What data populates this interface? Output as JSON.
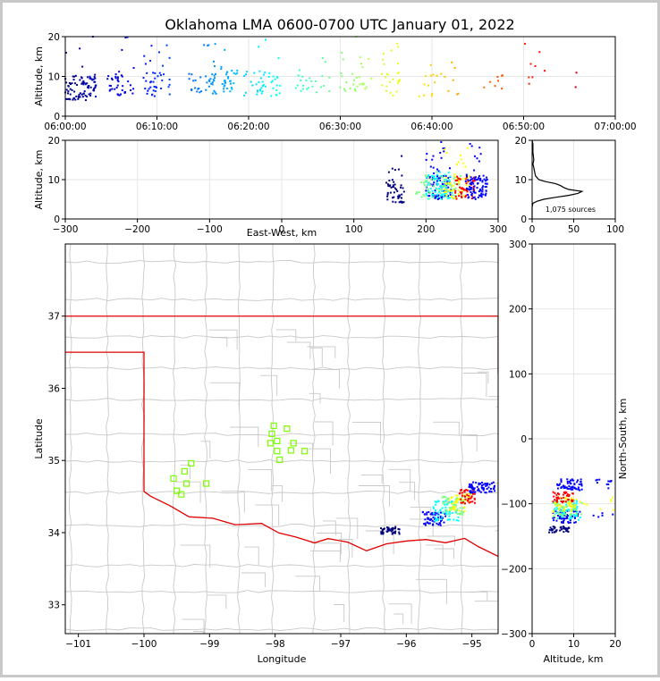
{
  "colors": {
    "outer_border": "#c8c8c8",
    "state_line": "#e00000",
    "county_line": "#c8c8c8",
    "grid": "#e6e6e6",
    "station_marker": "#7cfc00",
    "jet_scale": [
      "#00007f",
      "#0000ff",
      "#007fff",
      "#00ffff",
      "#7fff7f",
      "#ffff00",
      "#ff7f00",
      "#ff0000",
      "#7f0000"
    ]
  },
  "chart_data": [
    {
      "id": "time_height",
      "type": "scatter",
      "title": "Oklahoma LMA 0600-0700 UTC January 01, 2022",
      "xlabel": "",
      "ylabel": "Altitude, km",
      "xlim": [
        "06:00:00",
        "07:00:00"
      ],
      "ylim": [
        0,
        20
      ],
      "xticks": [
        "06:00:00",
        "06:10:00",
        "06:20:00",
        "06:30:00",
        "06:40:00",
        "06:50:00",
        "07:00:00"
      ],
      "yticks": [
        "0",
        "10",
        "20"
      ],
      "grid": true,
      "color_by": "time",
      "bursts": [
        {
          "t0_min": 0.0,
          "t1_min": 3.5,
          "alt_min": 4,
          "alt_max": 22,
          "count": 90
        },
        {
          "t0_min": 4.5,
          "t1_min": 7.5,
          "alt_min": 5,
          "alt_max": 20,
          "count": 40
        },
        {
          "t0_min": 8.5,
          "t1_min": 11.5,
          "alt_min": 5,
          "alt_max": 20,
          "count": 40
        },
        {
          "t0_min": 13.5,
          "t1_min": 16.5,
          "alt_min": 5,
          "alt_max": 19,
          "count": 40
        },
        {
          "t0_min": 17.0,
          "t1_min": 19.0,
          "alt_min": 6,
          "alt_max": 17,
          "count": 30
        },
        {
          "t0_min": 19.5,
          "t1_min": 23.5,
          "alt_min": 5,
          "alt_max": 20,
          "count": 45
        },
        {
          "t0_min": 25.0,
          "t1_min": 29.0,
          "alt_min": 5,
          "alt_max": 20,
          "count": 25
        },
        {
          "t0_min": 30.0,
          "t1_min": 33.5,
          "alt_min": 5,
          "alt_max": 20,
          "count": 30
        },
        {
          "t0_min": 34.5,
          "t1_min": 36.5,
          "alt_min": 5,
          "alt_max": 19,
          "count": 25
        },
        {
          "t0_min": 38.5,
          "t1_min": 43.0,
          "alt_min": 5,
          "alt_max": 14,
          "count": 20
        },
        {
          "t0_min": 45.5,
          "t1_min": 48.0,
          "alt_min": 6,
          "alt_max": 11,
          "count": 8
        },
        {
          "t0_min": 50.0,
          "t1_min": 52.5,
          "alt_min": 6,
          "alt_max": 19,
          "count": 8
        },
        {
          "t0_min": 55.5,
          "t1_min": 56.0,
          "alt_min": 7,
          "alt_max": 18,
          "count": 2
        }
      ]
    },
    {
      "id": "ew_alt",
      "type": "scatter",
      "xlabel": "East-West, km",
      "ylabel": "Altitude, km",
      "xlim": [
        -300,
        300
      ],
      "ylim": [
        0,
        20
      ],
      "xticks": [
        "−300",
        "−200",
        "−100",
        "0",
        "100",
        "200",
        "300"
      ],
      "yticks": [
        "0",
        "10",
        "20"
      ],
      "grid": true,
      "clusters": [
        {
          "x_min": 145,
          "x_max": 170,
          "alt_min": 4,
          "alt_max": 16,
          "count": 50,
          "color_index": 0
        },
        {
          "x_min": 200,
          "x_max": 235,
          "alt_min": 5,
          "alt_max": 20,
          "count": 90,
          "color_index": 1
        },
        {
          "x_min": 200,
          "x_max": 240,
          "alt_min": 5,
          "alt_max": 12,
          "count": 80,
          "color_index": 3
        },
        {
          "x_min": 185,
          "x_max": 250,
          "alt_min": 5,
          "alt_max": 12,
          "count": 60,
          "color_index": 4
        },
        {
          "x_min": 225,
          "x_max": 260,
          "alt_min": 5,
          "alt_max": 20,
          "count": 50,
          "color_index": 5
        },
        {
          "x_min": 240,
          "x_max": 268,
          "alt_min": 5,
          "alt_max": 11,
          "count": 50,
          "color_index": 7
        },
        {
          "x_min": 255,
          "x_max": 285,
          "alt_min": 5,
          "alt_max": 20,
          "count": 90,
          "color_index": 1
        }
      ]
    },
    {
      "id": "alt_histogram",
      "type": "line",
      "xlim": [
        0,
        100
      ],
      "ylim": [
        0,
        20
      ],
      "xticks": [
        "0",
        "50",
        "100"
      ],
      "yticks": [
        "0",
        "10",
        "20"
      ],
      "annotation": "1,075 sources",
      "altitude_km": [
        0,
        3,
        4,
        4.5,
        5,
        5.5,
        6,
        6.5,
        7,
        7.5,
        8,
        8.5,
        9,
        9.5,
        10,
        10.5,
        11,
        12,
        13,
        14,
        15,
        17,
        19,
        20
      ],
      "count": [
        0,
        0,
        1,
        6,
        14,
        28,
        44,
        55,
        60,
        44,
        38,
        34,
        28,
        16,
        8,
        6,
        4,
        3,
        2,
        1,
        2,
        1,
        1,
        0
      ]
    },
    {
      "id": "plan_view",
      "type": "scatter",
      "xlabel": "Longitude",
      "ylabel": "Latitude",
      "xlim": [
        -101.2,
        -94.6
      ],
      "ylim": [
        32.6,
        38.0
      ],
      "xticks": [
        "−101",
        "−100",
        "−99",
        "−98",
        "−97",
        "−96",
        "−95"
      ],
      "yticks": [
        "33",
        "34",
        "35",
        "36",
        "37"
      ],
      "stations": [
        [
          -98.02,
          35.48
        ],
        [
          -98.05,
          35.37
        ],
        [
          -97.97,
          35.27
        ],
        [
          -98.07,
          35.24
        ],
        [
          -97.82,
          35.44
        ],
        [
          -97.72,
          35.24
        ],
        [
          -97.97,
          35.13
        ],
        [
          -97.76,
          35.14
        ],
        [
          -97.55,
          35.13
        ],
        [
          -97.93,
          35.01
        ],
        [
          -99.28,
          34.96
        ],
        [
          -99.38,
          34.85
        ],
        [
          -99.55,
          34.75
        ],
        [
          -99.35,
          34.68
        ],
        [
          -99.05,
          34.68
        ],
        [
          -99.5,
          34.58
        ],
        [
          -99.43,
          34.53
        ]
      ],
      "clusters": [
        {
          "lon_min": -96.4,
          "lon_max": -96.1,
          "lat_min": 33.98,
          "lat_max": 34.08,
          "count": 40,
          "color_index": 0
        },
        {
          "lon_min": -95.75,
          "lon_max": -95.4,
          "lat_min": 34.1,
          "lat_max": 34.3,
          "count": 60,
          "color_index": 1
        },
        {
          "lon_min": -95.6,
          "lon_max": -95.2,
          "lat_min": 34.15,
          "lat_max": 34.45,
          "count": 60,
          "color_index": 3
        },
        {
          "lon_min": -95.45,
          "lon_max": -95.1,
          "lat_min": 34.25,
          "lat_max": 34.5,
          "count": 50,
          "color_index": 4
        },
        {
          "lon_min": -95.35,
          "lon_max": -95.0,
          "lat_min": 34.3,
          "lat_max": 34.55,
          "count": 40,
          "color_index": 5
        },
        {
          "lon_min": -95.2,
          "lon_max": -94.95,
          "lat_min": 34.4,
          "lat_max": 34.6,
          "count": 40,
          "color_index": 7
        },
        {
          "lon_min": -95.05,
          "lon_max": -94.65,
          "lat_min": 34.55,
          "lat_max": 34.7,
          "count": 70,
          "color_index": 1
        }
      ]
    },
    {
      "id": "alt_ns",
      "type": "scatter",
      "xlabel": "Altitude, km",
      "ylabel": "North-South, km",
      "xlim": [
        0,
        20
      ],
      "ylim": [
        -300,
        300
      ],
      "xticks": [
        "0",
        "10",
        "20"
      ],
      "yticks": [
        "−300",
        "−200",
        "−100",
        "0",
        "100",
        "200",
        "300"
      ],
      "grid": true,
      "clusters": [
        {
          "alt_min": 4,
          "alt_max": 9,
          "ns_min": -145,
          "ns_max": -135,
          "count": 40,
          "color_index": 0
        },
        {
          "alt_min": 5,
          "alt_max": 20,
          "ns_min": -130,
          "ns_max": -110,
          "count": 60,
          "color_index": 1
        },
        {
          "alt_min": 5,
          "alt_max": 12,
          "ns_min": -125,
          "ns_max": -95,
          "count": 60,
          "color_index": 3
        },
        {
          "alt_min": 5,
          "alt_max": 12,
          "ns_min": -120,
          "ns_max": -95,
          "count": 50,
          "color_index": 4
        },
        {
          "alt_min": 5,
          "alt_max": 20,
          "ns_min": -115,
          "ns_max": -90,
          "count": 45,
          "color_index": 5
        },
        {
          "alt_min": 5,
          "alt_max": 10,
          "ns_min": -100,
          "ns_max": -82,
          "count": 40,
          "color_index": 7
        },
        {
          "alt_min": 6,
          "alt_max": 20,
          "ns_min": -80,
          "ns_max": -62,
          "count": 70,
          "color_index": 1
        }
      ]
    }
  ]
}
